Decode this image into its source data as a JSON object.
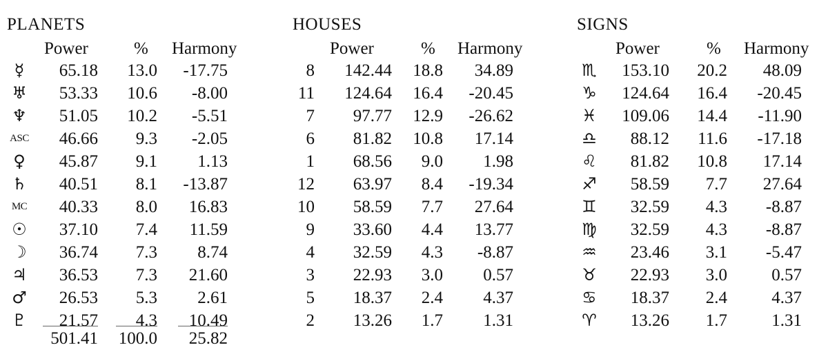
{
  "planets": {
    "title": "PLANETS",
    "headers": {
      "power": "Power",
      "percent": "%",
      "harmony": "Harmony"
    },
    "rows": [
      {
        "symbol": "☿",
        "power": "65.18",
        "percent": "13.0",
        "harmony": "-17.75"
      },
      {
        "symbol": "♅",
        "power": "53.33",
        "percent": "10.6",
        "harmony": "-8.00"
      },
      {
        "symbol": "♆",
        "power": "51.05",
        "percent": "10.2",
        "harmony": "-5.51"
      },
      {
        "symbol": "ASC",
        "power": "46.66",
        "percent": "9.3",
        "harmony": "-2.05"
      },
      {
        "symbol": "♀",
        "power": "45.87",
        "percent": "9.1",
        "harmony": "1.13"
      },
      {
        "symbol": "♄",
        "power": "40.51",
        "percent": "8.1",
        "harmony": "-13.87"
      },
      {
        "symbol": "MC",
        "power": "40.33",
        "percent": "8.0",
        "harmony": "16.83"
      },
      {
        "symbol": "☉",
        "power": "37.10",
        "percent": "7.4",
        "harmony": "11.59"
      },
      {
        "symbol": "☽",
        "power": "36.74",
        "percent": "7.3",
        "harmony": "8.74"
      },
      {
        "symbol": "♃",
        "power": "36.53",
        "percent": "7.3",
        "harmony": "21.60"
      },
      {
        "symbol": "♂",
        "power": "26.53",
        "percent": "5.3",
        "harmony": "2.61"
      },
      {
        "symbol": "♇",
        "power": "21.57",
        "percent": "4.3",
        "harmony": "10.49"
      }
    ],
    "totals": {
      "power": "501.41",
      "percent": "100.0",
      "harmony": "25.82"
    }
  },
  "houses": {
    "title": "HOUSES",
    "headers": {
      "power": "Power",
      "percent": "%",
      "harmony": "Harmony"
    },
    "rows": [
      {
        "house": "8",
        "power": "142.44",
        "percent": "18.8",
        "harmony": "34.89"
      },
      {
        "house": "11",
        "power": "124.64",
        "percent": "16.4",
        "harmony": "-20.45"
      },
      {
        "house": "7",
        "power": "97.77",
        "percent": "12.9",
        "harmony": "-26.62"
      },
      {
        "house": "6",
        "power": "81.82",
        "percent": "10.8",
        "harmony": "17.14"
      },
      {
        "house": "1",
        "power": "68.56",
        "percent": "9.0",
        "harmony": "1.98"
      },
      {
        "house": "12",
        "power": "63.97",
        "percent": "8.4",
        "harmony": "-19.34"
      },
      {
        "house": "10",
        "power": "58.59",
        "percent": "7.7",
        "harmony": "27.64"
      },
      {
        "house": "9",
        "power": "33.60",
        "percent": "4.4",
        "harmony": "13.77"
      },
      {
        "house": "4",
        "power": "32.59",
        "percent": "4.3",
        "harmony": "-8.87"
      },
      {
        "house": "3",
        "power": "22.93",
        "percent": "3.0",
        "harmony": "0.57"
      },
      {
        "house": "5",
        "power": "18.37",
        "percent": "2.4",
        "harmony": "4.37"
      },
      {
        "house": "2",
        "power": "13.26",
        "percent": "1.7",
        "harmony": "1.31"
      }
    ]
  },
  "signs": {
    "title": "SIGNS",
    "headers": {
      "power": "Power",
      "percent": "%",
      "harmony": "Harmony"
    },
    "rows": [
      {
        "symbol": "♏",
        "power": "153.10",
        "percent": "20.2",
        "harmony": "48.09"
      },
      {
        "symbol": "♑",
        "power": "124.64",
        "percent": "16.4",
        "harmony": "-20.45"
      },
      {
        "symbol": "♓",
        "power": "109.06",
        "percent": "14.4",
        "harmony": "-11.90"
      },
      {
        "symbol": "♎",
        "power": "88.12",
        "percent": "11.6",
        "harmony": "-17.18"
      },
      {
        "symbol": "♌",
        "power": "81.82",
        "percent": "10.8",
        "harmony": "17.14"
      },
      {
        "symbol": "♐",
        "power": "58.59",
        "percent": "7.7",
        "harmony": "27.64"
      },
      {
        "symbol": "♊",
        "power": "32.59",
        "percent": "4.3",
        "harmony": "-8.87"
      },
      {
        "symbol": "♍",
        "power": "32.59",
        "percent": "4.3",
        "harmony": "-8.87"
      },
      {
        "symbol": "♒",
        "power": "23.46",
        "percent": "3.1",
        "harmony": "-5.47"
      },
      {
        "symbol": "♉",
        "power": "22.93",
        "percent": "3.0",
        "harmony": "0.57"
      },
      {
        "symbol": "♋",
        "power": "18.37",
        "percent": "2.4",
        "harmony": "4.37"
      },
      {
        "symbol": "♈",
        "power": "13.26",
        "percent": "1.7",
        "harmony": "1.31"
      }
    ]
  }
}
